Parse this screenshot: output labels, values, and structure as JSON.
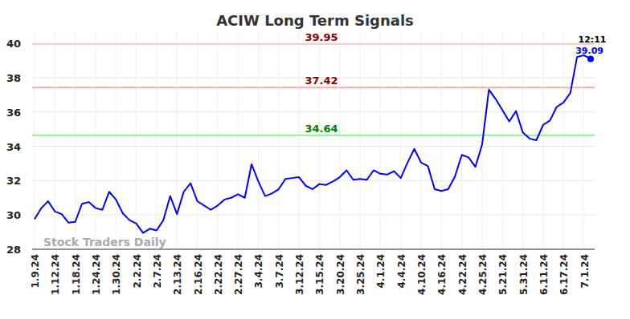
{
  "chart_data": {
    "type": "line",
    "title": "ACIW Long Term Signals",
    "categories": [
      "1.9.24",
      null,
      null,
      "1.12.24",
      null,
      null,
      "1.18.24",
      null,
      null,
      "1.24.24",
      null,
      null,
      "1.30.24",
      null,
      null,
      "2.2.24",
      null,
      null,
      "2.7.24",
      null,
      null,
      "2.13.24",
      null,
      null,
      "2.16.24",
      null,
      null,
      "2.22.24",
      null,
      null,
      "2.27.24",
      null,
      null,
      "3.4.24",
      null,
      null,
      "3.7.24",
      null,
      null,
      "3.12.24",
      null,
      null,
      "3.15.24",
      null,
      null,
      "3.20.24",
      null,
      null,
      "3.25.24",
      null,
      null,
      "4.1.24",
      null,
      null,
      "4.4.24",
      null,
      null,
      "4.10.24",
      null,
      null,
      "4.16.24",
      null,
      null,
      "4.22.24",
      null,
      null,
      "4.25.24",
      null,
      null,
      "5.21.24",
      null,
      null,
      "5.31.24",
      null,
      null,
      "6.11.24",
      null,
      null,
      "6.17.24",
      null,
      null,
      "7.1.24",
      null
    ],
    "series": [
      {
        "name": "ACIW",
        "color": "#0000ff",
        "values": [
          29.75,
          30.4,
          30.8,
          30.2,
          30.05,
          29.55,
          29.6,
          30.65,
          30.75,
          30.4,
          30.3,
          31.35,
          30.9,
          30.1,
          29.7,
          29.5,
          28.95,
          29.2,
          29.1,
          29.7,
          31.1,
          30.05,
          31.35,
          31.85,
          30.8,
          30.55,
          30.3,
          30.55,
          30.9,
          31.0,
          31.2,
          31.0,
          32.95,
          31.95,
          31.1,
          31.25,
          31.5,
          32.1,
          32.15,
          32.2,
          31.7,
          31.5,
          31.8,
          31.75,
          31.95,
          32.2,
          32.6,
          32.05,
          32.1,
          32.05,
          32.6,
          32.4,
          32.35,
          32.55,
          32.15,
          33.05,
          33.85,
          33.05,
          32.85,
          31.5,
          31.4,
          31.5,
          32.25,
          33.5,
          33.35,
          32.8,
          34.1,
          37.3,
          36.75,
          36.1,
          35.45,
          36.05,
          34.8,
          34.45,
          34.35,
          35.25,
          35.5,
          36.3,
          36.55,
          37.1,
          39.2,
          39.3,
          39.09
        ]
      }
    ],
    "ylim": [
      28,
      40
    ],
    "yticks": [
      28,
      30,
      32,
      34,
      36,
      38,
      40
    ],
    "grid": true,
    "reference_lines": [
      {
        "value": 39.95,
        "label": "39.95",
        "color": "#ffcccc",
        "label_color": "#8b0000"
      },
      {
        "value": 37.42,
        "label": "37.42",
        "color": "#ffaaaa",
        "label_color": "#8b0000"
      },
      {
        "value": 34.64,
        "label": "34.64",
        "color": "#90ee90",
        "label_color": "#008000"
      }
    ],
    "annotations": [
      {
        "text": "12:11",
        "color": "#000000"
      },
      {
        "text": "39.09",
        "color": "#0000ff"
      }
    ],
    "watermark": "Stock Traders Daily"
  }
}
